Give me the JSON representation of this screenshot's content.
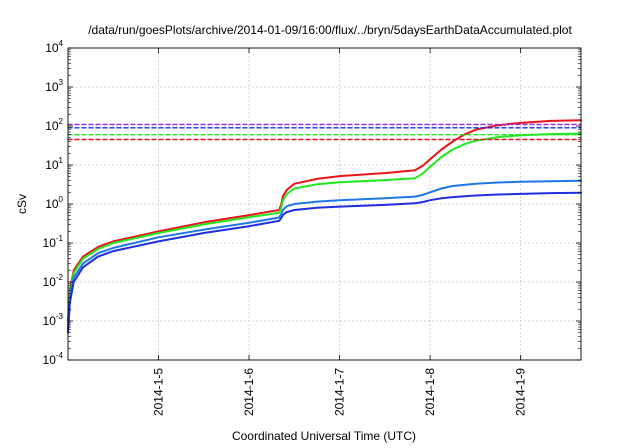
{
  "chart_data": {
    "type": "line",
    "title": "/data/run/goesPlots/archive/2014-01-09/16:00/flux/../bryn/5daysEarthDataAccumulated.plot",
    "xlabel": "Coordinated Universal Time (UTC)",
    "ylabel": "cSv",
    "x_scale": "time",
    "xlim": [
      "2014-01-04T00:00",
      "2014-01-09T16:00"
    ],
    "x_ticks": [
      "2014-01-05",
      "2014-01-06",
      "2014-01-07",
      "2014-01-08",
      "2014-01-09"
    ],
    "x_tick_labels": [
      "2014-1-5",
      "2014-1-6",
      "2014-1-7",
      "2014-1-8",
      "2014-1-9"
    ],
    "y_scale": "log",
    "ylim": [
      0.0001,
      10000
    ],
    "y_ticks": [
      {
        "base": "10",
        "exp": "-4"
      },
      {
        "base": "10",
        "exp": "-3"
      },
      {
        "base": "10",
        "exp": "-2"
      },
      {
        "base": "10",
        "exp": "-1"
      },
      {
        "base": "10",
        "exp": "0"
      },
      {
        "base": "10",
        "exp": "1"
      },
      {
        "base": "10",
        "exp": "2"
      },
      {
        "base": "10",
        "exp": "3"
      },
      {
        "base": "10",
        "exp": "4"
      }
    ],
    "grid": true,
    "legend": "none",
    "series": [
      {
        "color": "#e8141c",
        "style": "solid",
        "points": [
          [
            "2014-01-04T00:00",
            0.001
          ],
          [
            "2014-01-04T00:30",
            0.006
          ],
          [
            "2014-01-04T01:30",
            0.02
          ],
          [
            "2014-01-04T04:00",
            0.045
          ],
          [
            "2014-01-04T08:00",
            0.08
          ],
          [
            "2014-01-04T12:00",
            0.11
          ],
          [
            "2014-01-05T00:00",
            0.2
          ],
          [
            "2014-01-05T12:00",
            0.34
          ],
          [
            "2014-01-06T00:00",
            0.52
          ],
          [
            "2014-01-06T08:00",
            0.7
          ],
          [
            "2014-01-06T08:30",
            0.95
          ],
          [
            "2014-01-06T09:00",
            1.6
          ],
          [
            "2014-01-06T10:00",
            2.3
          ],
          [
            "2014-01-06T12:00",
            3.3
          ],
          [
            "2014-01-06T18:00",
            4.4
          ],
          [
            "2014-01-07T00:00",
            5.2
          ],
          [
            "2014-01-07T12:00",
            6.2
          ],
          [
            "2014-01-07T20:00",
            7.3
          ],
          [
            "2014-01-07T22:00",
            9.5
          ],
          [
            "2014-01-08T00:00",
            14
          ],
          [
            "2014-01-08T03:00",
            25
          ],
          [
            "2014-01-08T06:00",
            40
          ],
          [
            "2014-01-08T09:00",
            60
          ],
          [
            "2014-01-08T12:00",
            80
          ],
          [
            "2014-01-08T18:00",
            105
          ],
          [
            "2014-01-09T00:00",
            120
          ],
          [
            "2014-01-09T08:00",
            135
          ],
          [
            "2014-01-09T16:00",
            140
          ]
        ]
      },
      {
        "color": "#1fe81f",
        "style": "solid",
        "points": [
          [
            "2014-01-04T00:00",
            0.0008
          ],
          [
            "2014-01-04T00:30",
            0.005
          ],
          [
            "2014-01-04T01:30",
            0.017
          ],
          [
            "2014-01-04T04:00",
            0.04
          ],
          [
            "2014-01-04T08:00",
            0.07
          ],
          [
            "2014-01-04T12:00",
            0.1
          ],
          [
            "2014-01-05T00:00",
            0.18
          ],
          [
            "2014-01-05T12:00",
            0.3
          ],
          [
            "2014-01-06T00:00",
            0.46
          ],
          [
            "2014-01-06T08:00",
            0.6
          ],
          [
            "2014-01-06T08:30",
            0.8
          ],
          [
            "2014-01-06T09:00",
            1.25
          ],
          [
            "2014-01-06T10:00",
            1.8
          ],
          [
            "2014-01-06T12:00",
            2.5
          ],
          [
            "2014-01-06T18:00",
            3.2
          ],
          [
            "2014-01-07T00:00",
            3.6
          ],
          [
            "2014-01-07T12:00",
            4.1
          ],
          [
            "2014-01-07T20:00",
            4.6
          ],
          [
            "2014-01-07T22:00",
            6
          ],
          [
            "2014-01-08T00:00",
            9
          ],
          [
            "2014-01-08T03:00",
            16
          ],
          [
            "2014-01-08T06:00",
            25
          ],
          [
            "2014-01-08T09:00",
            34
          ],
          [
            "2014-01-08T12:00",
            42
          ],
          [
            "2014-01-08T18:00",
            52
          ],
          [
            "2014-01-09T00:00",
            58
          ],
          [
            "2014-01-09T08:00",
            62
          ],
          [
            "2014-01-09T16:00",
            64
          ]
        ]
      },
      {
        "color": "#1f78e6",
        "style": "solid",
        "points": [
          [
            "2014-01-04T00:00",
            0.0006
          ],
          [
            "2014-01-04T00:30",
            0.004
          ],
          [
            "2014-01-04T01:30",
            0.013
          ],
          [
            "2014-01-04T04:00",
            0.03
          ],
          [
            "2014-01-04T08:00",
            0.055
          ],
          [
            "2014-01-04T12:00",
            0.075
          ],
          [
            "2014-01-05T00:00",
            0.14
          ],
          [
            "2014-01-05T12:00",
            0.22
          ],
          [
            "2014-01-06T00:00",
            0.33
          ],
          [
            "2014-01-06T08:00",
            0.45
          ],
          [
            "2014-01-06T08:30",
            0.55
          ],
          [
            "2014-01-06T09:00",
            0.72
          ],
          [
            "2014-01-06T10:00",
            0.88
          ],
          [
            "2014-01-06T12:00",
            1.0
          ],
          [
            "2014-01-06T18:00",
            1.15
          ],
          [
            "2014-01-07T00:00",
            1.25
          ],
          [
            "2014-01-07T12:00",
            1.4
          ],
          [
            "2014-01-07T20:00",
            1.55
          ],
          [
            "2014-01-07T22:00",
            1.7
          ],
          [
            "2014-01-08T00:00",
            2.0
          ],
          [
            "2014-01-08T03:00",
            2.5
          ],
          [
            "2014-01-08T06:00",
            2.9
          ],
          [
            "2014-01-08T12:00",
            3.3
          ],
          [
            "2014-01-08T18:00",
            3.55
          ],
          [
            "2014-01-09T00:00",
            3.7
          ],
          [
            "2014-01-09T08:00",
            3.85
          ],
          [
            "2014-01-09T16:00",
            3.95
          ]
        ]
      },
      {
        "color": "#1f2ee0",
        "style": "solid",
        "points": [
          [
            "2014-01-04T00:00",
            0.0005
          ],
          [
            "2014-01-04T00:30",
            0.003
          ],
          [
            "2014-01-04T01:30",
            0.01
          ],
          [
            "2014-01-04T04:00",
            0.024
          ],
          [
            "2014-01-04T08:00",
            0.045
          ],
          [
            "2014-01-04T12:00",
            0.062
          ],
          [
            "2014-01-05T00:00",
            0.11
          ],
          [
            "2014-01-05T12:00",
            0.18
          ],
          [
            "2014-01-06T00:00",
            0.27
          ],
          [
            "2014-01-06T08:00",
            0.37
          ],
          [
            "2014-01-06T08:30",
            0.43
          ],
          [
            "2014-01-06T09:00",
            0.53
          ],
          [
            "2014-01-06T10:00",
            0.62
          ],
          [
            "2014-01-06T12:00",
            0.7
          ],
          [
            "2014-01-06T18:00",
            0.8
          ],
          [
            "2014-01-07T00:00",
            0.86
          ],
          [
            "2014-01-07T12:00",
            0.95
          ],
          [
            "2014-01-07T20:00",
            1.05
          ],
          [
            "2014-01-07T22:00",
            1.12
          ],
          [
            "2014-01-08T00:00",
            1.25
          ],
          [
            "2014-01-08T03:00",
            1.4
          ],
          [
            "2014-01-08T06:00",
            1.5
          ],
          [
            "2014-01-08T12:00",
            1.65
          ],
          [
            "2014-01-08T18:00",
            1.75
          ],
          [
            "2014-01-09T00:00",
            1.82
          ],
          [
            "2014-01-09T08:00",
            1.9
          ],
          [
            "2014-01-09T16:00",
            1.95
          ]
        ]
      },
      {
        "color": "#9a2be0",
        "style": "dashed",
        "points": [
          [
            "2014-01-04T00:00",
            110
          ],
          [
            "2014-01-09T16:00",
            110
          ]
        ]
      },
      {
        "color": "#1f2ee0",
        "style": "dashed",
        "points": [
          [
            "2014-01-04T00:00",
            90
          ],
          [
            "2014-01-09T16:00",
            90
          ]
        ]
      },
      {
        "color": "#1fe81f",
        "style": "dashed",
        "points": [
          [
            "2014-01-04T00:00",
            60
          ],
          [
            "2014-01-09T16:00",
            60
          ]
        ]
      },
      {
        "color": "#e8141c",
        "style": "dashed",
        "points": [
          [
            "2014-01-04T00:00",
            45
          ],
          [
            "2014-01-09T16:00",
            45
          ]
        ]
      }
    ]
  }
}
